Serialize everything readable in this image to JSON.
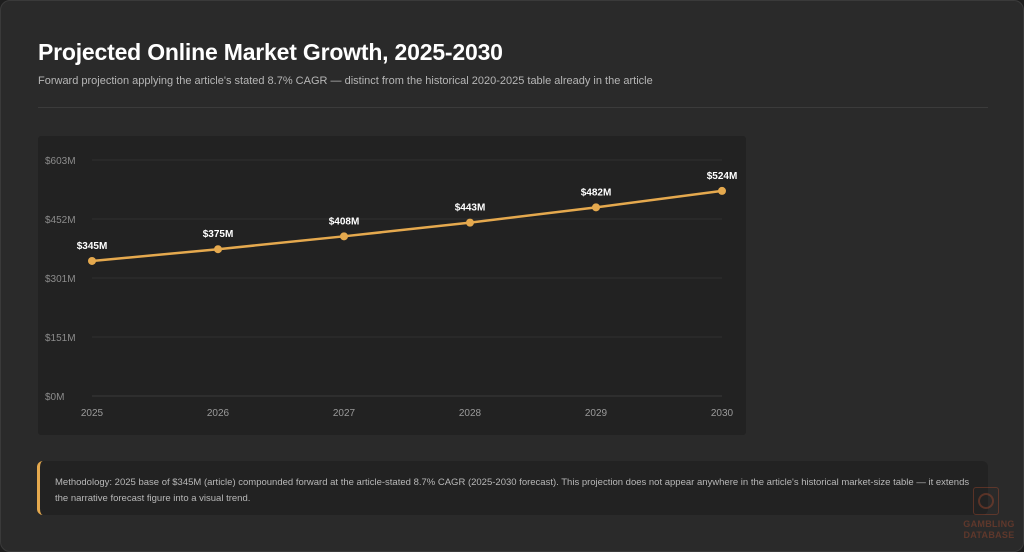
{
  "header": {
    "title": "Projected Online Market Growth, 2025-2030",
    "subtitle": "Forward projection applying the article's stated 8.7% CAGR — distinct from the historical 2020-2025 table already in the article"
  },
  "chart_data": {
    "type": "line",
    "x": [
      "2025",
      "2026",
      "2027",
      "2028",
      "2029",
      "2030"
    ],
    "series": [
      {
        "values": [
          345,
          375,
          408,
          443,
          482,
          524
        ],
        "labels": [
          "$345M",
          "$375M",
          "$408M",
          "$443M",
          "$482M",
          "$524M"
        ]
      }
    ],
    "y_ticks": [
      "$0M",
      "$151M",
      "$301M",
      "$452M",
      "$603M"
    ],
    "ylim": [
      0,
      603
    ],
    "grid": true,
    "line_color": "#e5a94e"
  },
  "note": {
    "text": "Methodology: 2025 base of $345M (article) compounded forward at the article-stated 8.7% CAGR (2025-2030 forecast). This projection does not appear anywhere in the article's historical market-size table — it extends the narrative forecast figure into a visual trend."
  },
  "watermark": {
    "line1": "GAMBLING",
    "line2": "DATABASE"
  }
}
